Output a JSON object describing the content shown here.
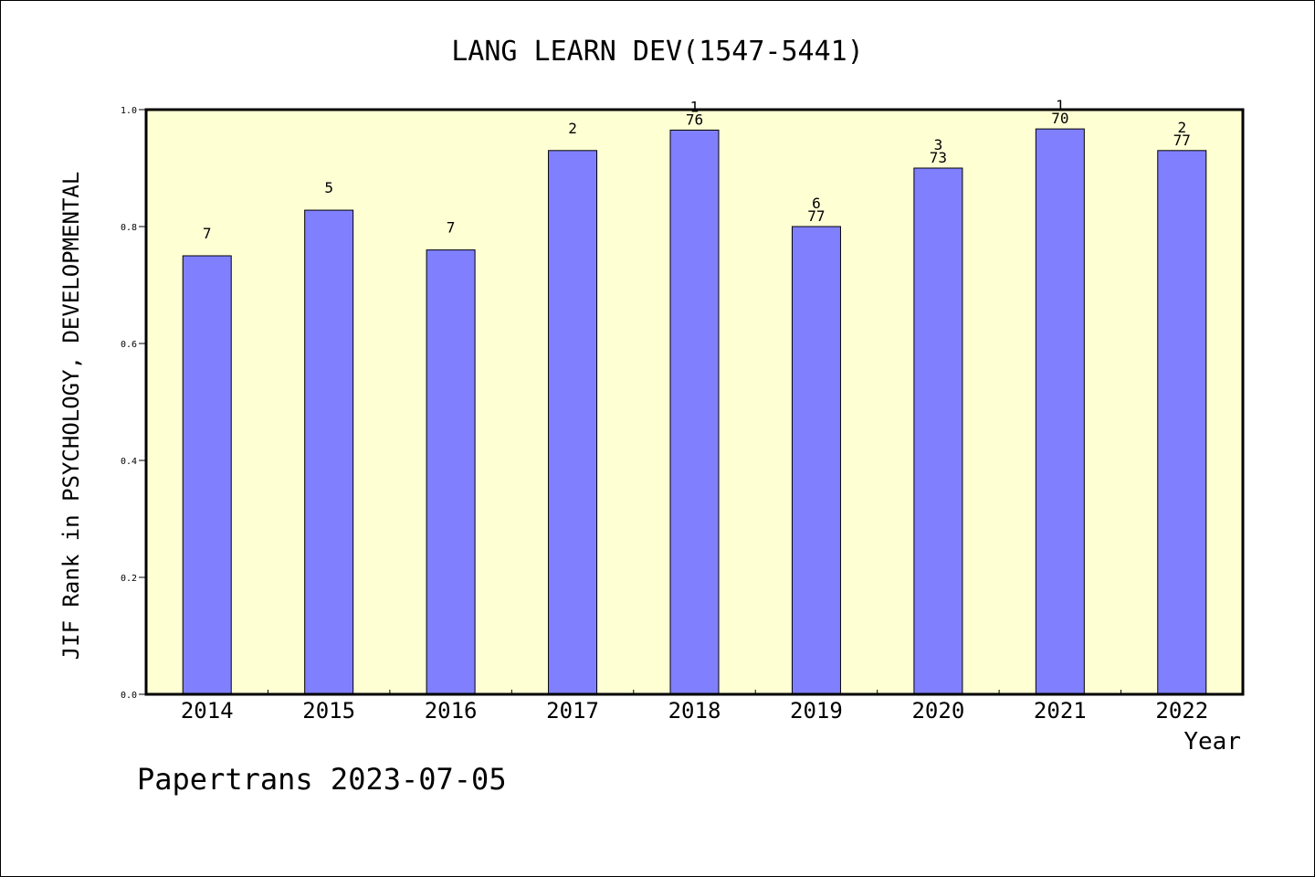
{
  "chart_data": {
    "type": "bar",
    "title": "LANG LEARN DEV(1547-5441)",
    "xlabel": "Year",
    "ylabel": "JIF Rank in PSYCHOLOGY, DEVELOPMENTAL",
    "ylim": [
      0,
      1.0
    ],
    "yticks": [
      "0.0",
      "0.2",
      "0.4",
      "0.6",
      "0.8",
      "1.0"
    ],
    "grid": false,
    "categories": [
      "2014",
      "2015",
      "2016",
      "2017",
      "2018",
      "2019",
      "2020",
      "2021",
      "2022"
    ],
    "values": [
      0.75,
      0.828,
      0.76,
      0.93,
      0.965,
      0.8,
      0.9,
      0.967,
      0.93
    ],
    "labels": [
      {
        "rank": "7",
        "total": ""
      },
      {
        "rank": "5",
        "total": ""
      },
      {
        "rank": "7",
        "total": ""
      },
      {
        "rank": "2",
        "total": ""
      },
      {
        "rank": "1",
        "total": "76"
      },
      {
        "rank": "6",
        "total": "77"
      },
      {
        "rank": "3",
        "total": "73"
      },
      {
        "rank": "1",
        "total": "70"
      },
      {
        "rank": "2",
        "total": "77"
      }
    ],
    "colors": {
      "bar": "#8080ff",
      "plot_background": "#ffffd4",
      "axis": "#000000"
    }
  },
  "footer": "Papertrans 2023-07-05"
}
